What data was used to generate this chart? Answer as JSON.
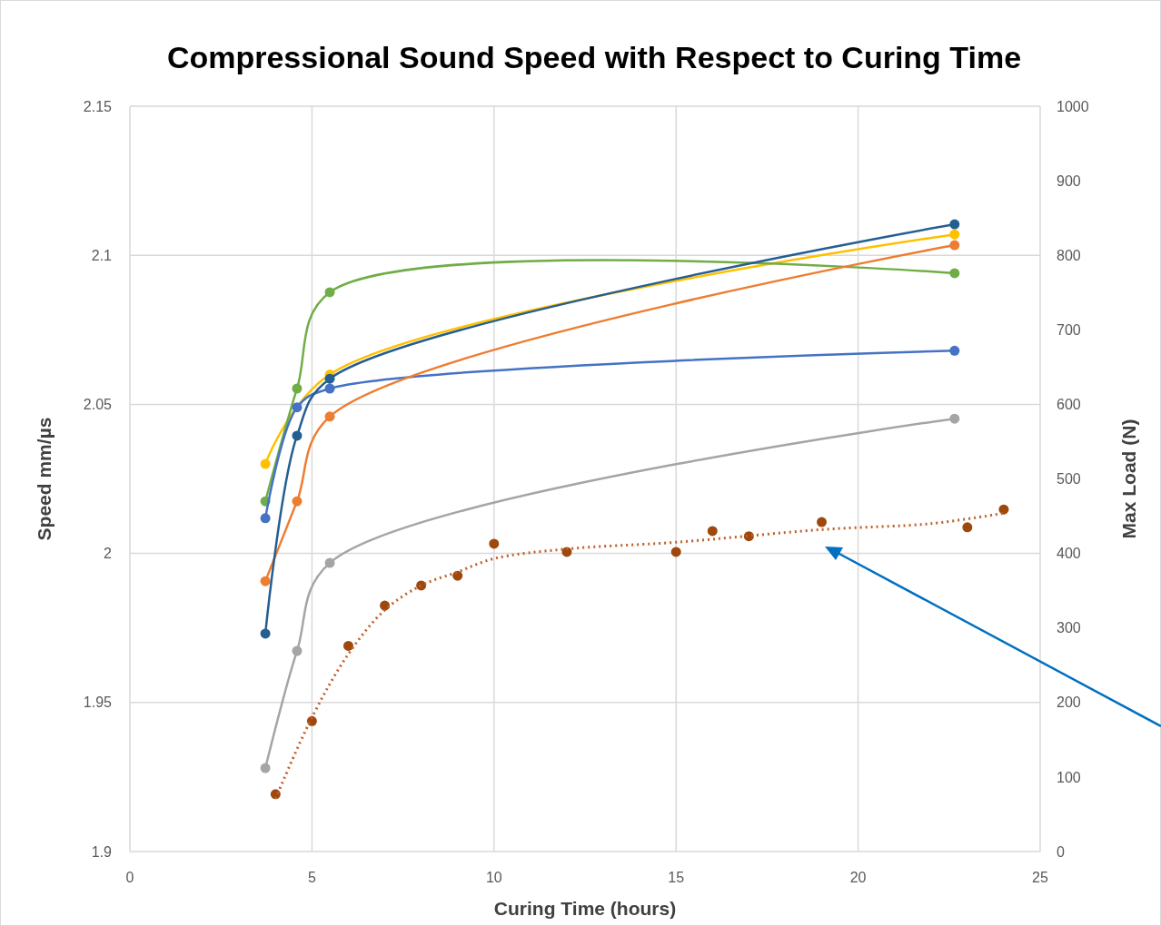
{
  "chart_data": {
    "type": "line",
    "title": "Compressional Sound Speed with Respect to Curing Time",
    "xlabel": "Curing Time (hours)",
    "ylabel": "Speed mm/µs",
    "y2label": "Max Load (N)",
    "xlim": [
      0,
      25
    ],
    "xticks": [
      0,
      5,
      10,
      15,
      20,
      25
    ],
    "ylim": [
      1.9,
      2.15
    ],
    "yticks": [
      1.9,
      1.95,
      2,
      2.05,
      2.1,
      2.15
    ],
    "y2lim": [
      0,
      1000
    ],
    "y2ticks": [
      0,
      100,
      200,
      300,
      400,
      500,
      600,
      700,
      800,
      900,
      1000
    ],
    "grid": true,
    "marker": "circle",
    "series": [
      {
        "color": "#ffc000",
        "x": [
          3.72,
          5.49,
          22.65
        ],
        "values": [
          2.03,
          2.06,
          2.107
        ]
      },
      {
        "color": "#70ad47",
        "x": [
          3.72,
          4.59,
          5.49,
          22.65
        ],
        "values": [
          2.0175,
          2.0553,
          2.0876,
          2.094
        ]
      },
      {
        "color": "#4472c4",
        "x": [
          3.72,
          4.59,
          5.49,
          22.65
        ],
        "values": [
          2.0118,
          2.049,
          2.0553,
          2.068
        ]
      },
      {
        "color": "#ed7d31",
        "x": [
          3.72,
          4.59,
          5.49,
          22.65
        ],
        "values": [
          1.9907,
          2.0175,
          2.0459,
          2.1034
        ]
      },
      {
        "color": "#255e91",
        "x": [
          3.72,
          4.59,
          5.49,
          22.65
        ],
        "values": [
          1.9731,
          2.0395,
          2.0586,
          2.1104
        ]
      },
      {
        "color": "#a5a5a5",
        "x": [
          3.72,
          4.59,
          5.49,
          22.65
        ],
        "values": [
          1.928,
          1.9673,
          1.9968,
          2.0452
        ]
      },
      {
        "type": "scatter",
        "axis": "y2",
        "color": "#9e480e",
        "x": [
          4,
          5,
          6,
          7,
          8,
          9,
          10,
          12,
          15,
          16,
          17,
          19,
          23,
          24
        ],
        "values": [
          77,
          175,
          276,
          330,
          357,
          370,
          413,
          402,
          402,
          430,
          423,
          442,
          435,
          459
        ]
      },
      {
        "type": "line",
        "axis": "y2",
        "color": "#c0602a",
        "marker": "none",
        "line_style": "dotted",
        "x": [
          4,
          5,
          6,
          7,
          8,
          9,
          10,
          12,
          15,
          19,
          22,
          24
        ],
        "values": [
          71,
          180,
          265,
          324,
          357,
          375,
          393,
          406,
          415,
          432,
          440,
          454
        ]
      }
    ]
  }
}
